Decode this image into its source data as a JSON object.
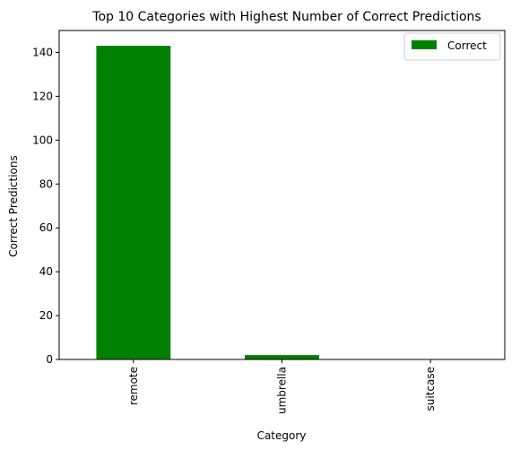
{
  "chart_data": {
    "type": "bar",
    "title": "Top 10 Categories with Highest Number of Correct Predictions",
    "xlabel": "Category",
    "ylabel": "Correct Predictions",
    "categories": [
      "remote",
      "umbrella",
      "suitcase"
    ],
    "series": [
      {
        "name": "Correct",
        "values": [
          143,
          2,
          0
        ],
        "color": "#008000"
      }
    ],
    "ylim": [
      0,
      150
    ],
    "yticks": [
      0,
      20,
      40,
      60,
      80,
      100,
      120,
      140
    ],
    "grid": false,
    "legend_position": "top-right"
  }
}
